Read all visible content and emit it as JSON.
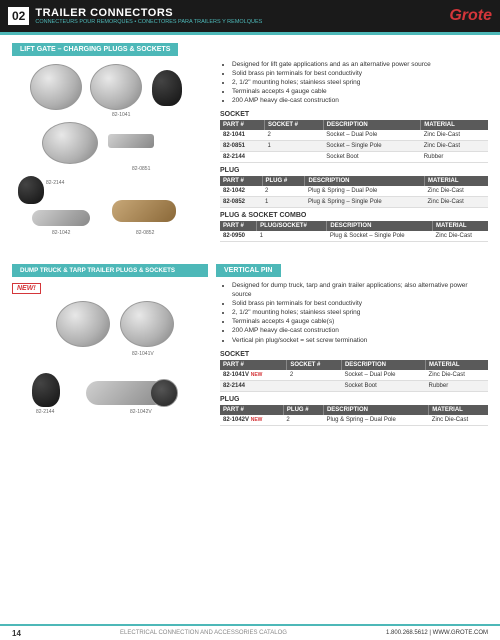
{
  "header": {
    "page_num": "02",
    "title": "TRAILER CONNECTORS",
    "subtitle": "CONNECTEURS POUR REMORQUES • CONECTORES PARA TRAILERS Y REMOLQUES",
    "logo": "Grote"
  },
  "colors": {
    "accent": "#4db8b8",
    "dark": "#1a1a1a",
    "red": "#d4363a",
    "th_bg": "#5a5a5a"
  },
  "section1": {
    "title": "LIFT GATE – CHARGING PLUGS & SOCKETS",
    "bullets": [
      "Designed for lift gate applications and as an alternative power source",
      "Solid brass pin terminals for best conductivity",
      "2, 1/2\" mounting holes; stainless steel spring",
      "Terminals accepts 4 gauge cable",
      "200 AMP heavy die-cast construction"
    ],
    "images": [
      {
        "label": "82-1041"
      },
      {
        "label": "82-0851"
      },
      {
        "label": "82-2144"
      },
      {
        "label": "82-1042"
      },
      {
        "label": "82-0852"
      }
    ],
    "tables": [
      {
        "title": "SOCKET",
        "headers": [
          "PART #",
          "SOCKET #",
          "DESCRIPTION",
          "MATERIAL"
        ],
        "rows": [
          [
            "82-1041",
            "2",
            "Socket – Dual Pole",
            "Zinc Die-Cast"
          ],
          [
            "82-0851",
            "1",
            "Socket – Single Pole",
            "Zinc Die-Cast"
          ],
          [
            "82-2144",
            "",
            "Socket Boot",
            "Rubber"
          ]
        ]
      },
      {
        "title": "PLUG",
        "headers": [
          "PART #",
          "PLUG #",
          "DESCRIPTION",
          "MATERIAL"
        ],
        "rows": [
          [
            "82-1042",
            "2",
            "Plug & Spring – Dual Pole",
            "Zinc Die-Cast"
          ],
          [
            "82-0852",
            "1",
            "Plug & Spring – Single Pole",
            "Zinc Die-Cast"
          ]
        ]
      },
      {
        "title": "PLUG & SOCKET COMBO",
        "headers": [
          "PART #",
          "PLUG/SOCKET#",
          "DESCRIPTION",
          "MATERIAL"
        ],
        "rows": [
          [
            "82-0950",
            "1",
            "Plug & Socket – Single Pole",
            "Zinc Die-Cast"
          ]
        ]
      }
    ]
  },
  "section2": {
    "left_title": "DUMP TRUCK & TARP TRAILER PLUGS & SOCKETS",
    "right_title": "VERTICAL PIN",
    "new_badge": "NEW!",
    "bullets": [
      "Designed for dump truck, tarp and grain trailer applications; also alternative power source",
      "Solid brass pin terminals for best conductivity",
      "2, 1/2\" mounting holes; stainless steel spring",
      "Terminals accepts 4 gauge cable(s)",
      "200 AMP heavy die-cast construction",
      "Vertical pin plug/socket = set screw termination"
    ],
    "images": [
      {
        "label": "82-1041V"
      },
      {
        "label": "82-2144"
      },
      {
        "label": "82-1042V"
      }
    ],
    "tables": [
      {
        "title": "SOCKET",
        "headers": [
          "PART #",
          "SOCKET #",
          "DESCRIPTION",
          "MATERIAL"
        ],
        "rows": [
          [
            "82-1041V",
            "2",
            "Socket – Dual Pole",
            "Zinc Die-Cast"
          ],
          [
            "82-2144",
            "",
            "Socket Boot",
            "Rubber"
          ]
        ],
        "new_rows": [
          0
        ]
      },
      {
        "title": "PLUG",
        "headers": [
          "PART #",
          "PLUG #",
          "DESCRIPTION",
          "MATERIAL"
        ],
        "rows": [
          [
            "82-1042V",
            "2",
            "Plug & Spring – Dual Pole",
            "Zinc Die-Cast"
          ]
        ],
        "new_rows": [
          0
        ]
      }
    ]
  },
  "footer": {
    "page": "14",
    "center": "ELECTRICAL CONNECTION AND ACCESSORIES CATALOG",
    "phone": "1.800.268.5612",
    "url": "WWW.GROTE.COM"
  }
}
